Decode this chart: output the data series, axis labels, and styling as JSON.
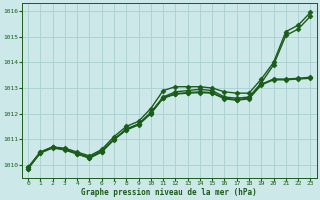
{
  "title": "Graphe pression niveau de la mer (hPa)",
  "bg_color": "#cce8e8",
  "grid_color": "#aacfcf",
  "line_color": "#1a5c1a",
  "marker_color": "#1a5c1a",
  "xlim": [
    -0.5,
    23.5
  ],
  "ylim": [
    1009.5,
    1016.3
  ],
  "xticks": [
    0,
    1,
    2,
    3,
    4,
    5,
    6,
    7,
    8,
    9,
    10,
    11,
    12,
    13,
    14,
    15,
    16,
    17,
    18,
    19,
    20,
    21,
    22,
    23
  ],
  "yticks": [
    1010,
    1011,
    1012,
    1013,
    1014,
    1015,
    1016
  ],
  "series": [
    {
      "x": [
        0,
        1,
        2,
        3,
        4,
        5,
        6,
        7,
        8,
        9,
        10,
        11,
        12,
        13,
        14,
        15,
        16,
        17,
        18,
        19,
        20,
        21,
        22,
        23
      ],
      "y": [
        1009.9,
        1010.5,
        1010.7,
        1010.65,
        1010.5,
        1010.35,
        1010.6,
        1011.1,
        1011.5,
        1011.7,
        1012.2,
        1012.9,
        1013.05,
        1013.05,
        1013.05,
        1013.0,
        1012.85,
        1012.8,
        1012.8,
        1013.35,
        1014.0,
        1015.2,
        1015.45,
        1015.95
      ],
      "marker": "D",
      "markersize": 2.5,
      "linewidth": 1.0
    },
    {
      "x": [
        0,
        1,
        2,
        3,
        4,
        5,
        6,
        7,
        8,
        9,
        10,
        11,
        12,
        13,
        14,
        15,
        16,
        17,
        18,
        19,
        20,
        21,
        22,
        23
      ],
      "y": [
        1009.9,
        1010.5,
        1010.7,
        1010.6,
        1010.45,
        1010.3,
        1010.55,
        1011.0,
        1011.4,
        1011.6,
        1012.05,
        1012.65,
        1012.85,
        1012.9,
        1012.95,
        1012.9,
        1012.65,
        1012.6,
        1012.65,
        1013.2,
        1013.9,
        1015.05,
        1015.3,
        1015.8
      ],
      "marker": "D",
      "markersize": 2.5,
      "linewidth": 1.0
    },
    {
      "x": [
        0,
        1,
        2,
        3,
        4,
        5,
        6,
        7,
        8,
        9,
        10,
        11,
        12,
        13,
        14,
        15,
        16,
        17,
        18,
        19,
        20,
        21,
        22,
        23
      ],
      "y": [
        1009.85,
        1010.48,
        1010.68,
        1010.6,
        1010.44,
        1010.28,
        1010.52,
        1011.0,
        1011.38,
        1011.58,
        1012.02,
        1012.62,
        1012.78,
        1012.82,
        1012.85,
        1012.82,
        1012.6,
        1012.55,
        1012.6,
        1013.15,
        1013.35,
        1013.35,
        1013.38,
        1013.42
      ],
      "marker": "D",
      "markersize": 2.5,
      "linewidth": 1.0
    },
    {
      "x": [
        0,
        1,
        2,
        3,
        4,
        5,
        6,
        7,
        8,
        9,
        10,
        11,
        12,
        13,
        14,
        15,
        16,
        17,
        18,
        19,
        20,
        21,
        22,
        23
      ],
      "y": [
        1009.85,
        1010.46,
        1010.66,
        1010.58,
        1010.42,
        1010.26,
        1010.5,
        1010.98,
        1011.36,
        1011.56,
        1012.0,
        1012.6,
        1012.76,
        1012.8,
        1012.82,
        1012.8,
        1012.58,
        1012.52,
        1012.58,
        1013.12,
        1013.32,
        1013.32,
        1013.35,
        1013.38
      ],
      "marker": "D",
      "markersize": 2.5,
      "linewidth": 1.0
    }
  ]
}
